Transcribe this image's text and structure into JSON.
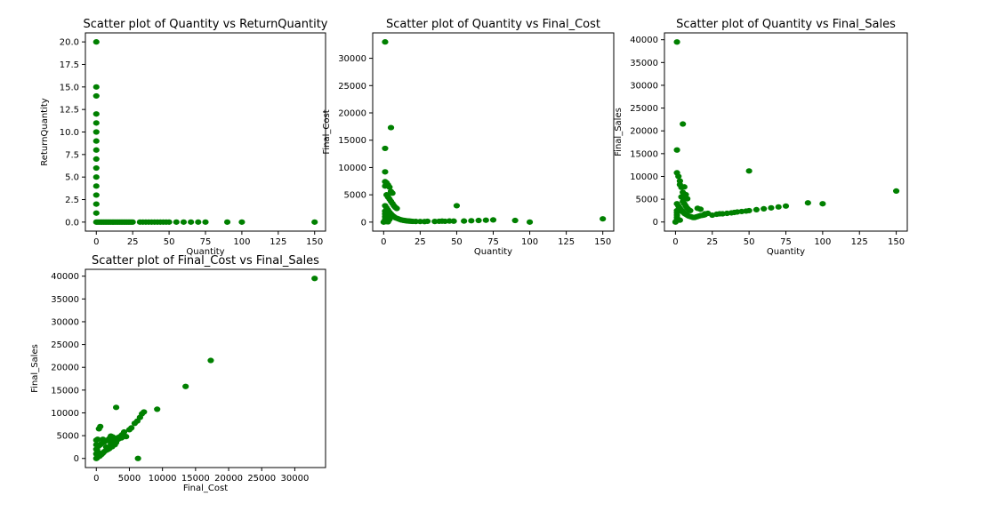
{
  "marker_color": "#008000",
  "chart_data": [
    {
      "type": "scatter",
      "title": "Scatter plot of Quantity vs ReturnQuantity",
      "xlabel": "Quantity",
      "ylabel": "ReturnQuantity",
      "xlim": [
        -7.5,
        157.5
      ],
      "ylim": [
        -1.0,
        21.0
      ],
      "xticks": [
        0,
        25,
        50,
        75,
        100,
        125,
        150
      ],
      "yticks": [
        0.0,
        2.5,
        5.0,
        7.5,
        10.0,
        12.5,
        15.0,
        17.5,
        20.0
      ],
      "ytick_labels": [
        "0.0",
        "2.5",
        "5.0",
        "7.5",
        "10.0",
        "12.5",
        "15.0",
        "17.5",
        "20.0"
      ],
      "points": [
        [
          0,
          20
        ],
        [
          0,
          15
        ],
        [
          0,
          14
        ],
        [
          0,
          12
        ],
        [
          0,
          11
        ],
        [
          0,
          10
        ],
        [
          0,
          9
        ],
        [
          0,
          8
        ],
        [
          0,
          7
        ],
        [
          0,
          6
        ],
        [
          0,
          5
        ],
        [
          0,
          4
        ],
        [
          0,
          3
        ],
        [
          0,
          2
        ],
        [
          0,
          1
        ],
        [
          0,
          0
        ],
        [
          1,
          0
        ],
        [
          2,
          0
        ],
        [
          3,
          0
        ],
        [
          4,
          0
        ],
        [
          5,
          0
        ],
        [
          6,
          0
        ],
        [
          7,
          0
        ],
        [
          8,
          0
        ],
        [
          9,
          0
        ],
        [
          10,
          0
        ],
        [
          11,
          0
        ],
        [
          12,
          0
        ],
        [
          13,
          0
        ],
        [
          14,
          0
        ],
        [
          15,
          0
        ],
        [
          16,
          0
        ],
        [
          17,
          0
        ],
        [
          18,
          0
        ],
        [
          19,
          0
        ],
        [
          20,
          0
        ],
        [
          21,
          0
        ],
        [
          22,
          0
        ],
        [
          23,
          0
        ],
        [
          24,
          0
        ],
        [
          25,
          0
        ],
        [
          30,
          0
        ],
        [
          32,
          0
        ],
        [
          34,
          0
        ],
        [
          36,
          0
        ],
        [
          38,
          0
        ],
        [
          40,
          0
        ],
        [
          42,
          0
        ],
        [
          44,
          0
        ],
        [
          46,
          0
        ],
        [
          48,
          0
        ],
        [
          50,
          0
        ],
        [
          55,
          0
        ],
        [
          60,
          0
        ],
        [
          65,
          0
        ],
        [
          70,
          0
        ],
        [
          75,
          0
        ],
        [
          90,
          0
        ],
        [
          100,
          0
        ],
        [
          150,
          0
        ]
      ]
    },
    {
      "type": "scatter",
      "title": "Scatter plot of Quantity vs Final_Cost",
      "xlabel": "Quantity",
      "ylabel": "Final_Cost",
      "xlim": [
        -7.5,
        157.5
      ],
      "ylim": [
        -1650,
        34650
      ],
      "xticks": [
        0,
        25,
        50,
        75,
        100,
        125,
        150
      ],
      "yticks": [
        0,
        5000,
        10000,
        15000,
        20000,
        25000,
        30000
      ],
      "ytick_labels": [
        "0",
        "5000",
        "10000",
        "15000",
        "20000",
        "25000",
        "30000"
      ],
      "points": [
        [
          1,
          33000
        ],
        [
          5,
          17300
        ],
        [
          1,
          13500
        ],
        [
          1,
          9200
        ],
        [
          1,
          7400
        ],
        [
          2,
          7200
        ],
        [
          1,
          6600
        ],
        [
          3,
          6800
        ],
        [
          4,
          6400
        ],
        [
          5,
          5600
        ],
        [
          6,
          5300
        ],
        [
          2,
          5000
        ],
        [
          3,
          4600
        ],
        [
          4,
          4200
        ],
        [
          5,
          3800
        ],
        [
          6,
          3400
        ],
        [
          7,
          3000
        ],
        [
          8,
          2700
        ],
        [
          9,
          2500
        ],
        [
          1,
          3000
        ],
        [
          2,
          2600
        ],
        [
          3,
          2200
        ],
        [
          4,
          1800
        ],
        [
          5,
          1500
        ],
        [
          6,
          1200
        ],
        [
          7,
          1000
        ],
        [
          8,
          800
        ],
        [
          9,
          700
        ],
        [
          10,
          600
        ],
        [
          11,
          500
        ],
        [
          12,
          400
        ],
        [
          13,
          350
        ],
        [
          14,
          300
        ],
        [
          15,
          260
        ],
        [
          16,
          220
        ],
        [
          17,
          200
        ],
        [
          18,
          180
        ],
        [
          19,
          150
        ],
        [
          20,
          130
        ],
        [
          1,
          2000
        ],
        [
          1,
          1500
        ],
        [
          1,
          1000
        ],
        [
          1,
          500
        ],
        [
          2,
          1200
        ],
        [
          2,
          800
        ],
        [
          3,
          600
        ],
        [
          4,
          500
        ],
        [
          0,
          0
        ],
        [
          1,
          100
        ],
        [
          2,
          100
        ],
        [
          3,
          50
        ],
        [
          22,
          120
        ],
        [
          25,
          110
        ],
        [
          28,
          100
        ],
        [
          30,
          150
        ],
        [
          35,
          120
        ],
        [
          38,
          150
        ],
        [
          40,
          180
        ],
        [
          42,
          150
        ],
        [
          45,
          200
        ],
        [
          48,
          180
        ],
        [
          50,
          3000
        ],
        [
          55,
          200
        ],
        [
          60,
          250
        ],
        [
          65,
          300
        ],
        [
          70,
          350
        ],
        [
          75,
          400
        ],
        [
          90,
          300
        ],
        [
          100,
          0
        ],
        [
          150,
          600
        ]
      ]
    },
    {
      "type": "scatter",
      "title": "Scatter plot of Quantity vs Final_Sales",
      "xlabel": "Quantity",
      "ylabel": "Final_Sales",
      "xlim": [
        -7.5,
        157.5
      ],
      "ylim": [
        -2000,
        41500
      ],
      "xticks": [
        0,
        25,
        50,
        75,
        100,
        125,
        150
      ],
      "yticks": [
        0,
        5000,
        10000,
        15000,
        20000,
        25000,
        30000,
        35000,
        40000
      ],
      "ytick_labels": [
        "0",
        "5000",
        "10000",
        "15000",
        "20000",
        "25000",
        "30000",
        "35000",
        "40000"
      ],
      "points": [
        [
          1,
          39500
        ],
        [
          5,
          21500
        ],
        [
          1,
          15800
        ],
        [
          1,
          10800
        ],
        [
          2,
          10000
        ],
        [
          3,
          9000
        ],
        [
          3,
          8200
        ],
        [
          4,
          7600
        ],
        [
          6,
          7700
        ],
        [
          5,
          6500
        ],
        [
          7,
          6000
        ],
        [
          4,
          5500
        ],
        [
          6,
          5200
        ],
        [
          8,
          5100
        ],
        [
          5,
          4500
        ],
        [
          6,
          4000
        ],
        [
          7,
          3500
        ],
        [
          8,
          3000
        ],
        [
          9,
          2700
        ],
        [
          10,
          2500
        ],
        [
          1,
          4000
        ],
        [
          2,
          3500
        ],
        [
          3,
          3000
        ],
        [
          4,
          2600
        ],
        [
          5,
          2200
        ],
        [
          6,
          1900
        ],
        [
          7,
          1700
        ],
        [
          8,
          1500
        ],
        [
          9,
          1300
        ],
        [
          10,
          1200
        ],
        [
          11,
          1100
        ],
        [
          12,
          1000
        ],
        [
          13,
          1000
        ],
        [
          14,
          1100
        ],
        [
          15,
          1200
        ],
        [
          16,
          1300
        ],
        [
          17,
          1400
        ],
        [
          18,
          1450
        ],
        [
          19,
          1500
        ],
        [
          20,
          1600
        ],
        [
          1,
          2500
        ],
        [
          1,
          2000
        ],
        [
          1,
          1500
        ],
        [
          1,
          1000
        ],
        [
          1,
          500
        ],
        [
          0,
          0
        ],
        [
          2,
          500
        ],
        [
          3,
          400
        ],
        [
          15,
          3000
        ],
        [
          17,
          2800
        ],
        [
          20,
          1800
        ],
        [
          22,
          1900
        ],
        [
          25,
          1500
        ],
        [
          28,
          1700
        ],
        [
          30,
          1800
        ],
        [
          32,
          1800
        ],
        [
          35,
          1900
        ],
        [
          38,
          2000
        ],
        [
          40,
          2100
        ],
        [
          42,
          2200
        ],
        [
          45,
          2300
        ],
        [
          48,
          2400
        ],
        [
          50,
          11200
        ],
        [
          50,
          2500
        ],
        [
          55,
          2700
        ],
        [
          60,
          2900
        ],
        [
          65,
          3100
        ],
        [
          70,
          3300
        ],
        [
          75,
          3500
        ],
        [
          90,
          4200
        ],
        [
          100,
          4000
        ],
        [
          150,
          6800
        ]
      ]
    },
    {
      "type": "scatter",
      "title": "Scatter plot of Final_Cost vs Final_Sales",
      "xlabel": "Final_Cost",
      "ylabel": "Final_Sales",
      "xlim": [
        -1650,
        34650
      ],
      "ylim": [
        -2000,
        41500
      ],
      "xticks": [
        0,
        5000,
        10000,
        15000,
        20000,
        25000,
        30000
      ],
      "yticks": [
        0,
        5000,
        10000,
        15000,
        20000,
        25000,
        30000,
        35000,
        40000
      ],
      "ytick_labels": [
        "0",
        "5000",
        "10000",
        "15000",
        "20000",
        "25000",
        "30000",
        "35000",
        "40000"
      ],
      "points": [
        [
          33000,
          39500
        ],
        [
          17300,
          21500
        ],
        [
          13500,
          15800
        ],
        [
          9200,
          10800
        ],
        [
          7200,
          10200
        ],
        [
          6900,
          9800
        ],
        [
          6600,
          9000
        ],
        [
          6200,
          8200
        ],
        [
          5800,
          7700
        ],
        [
          5300,
          6700
        ],
        [
          5000,
          6300
        ],
        [
          3000,
          11200
        ],
        [
          600,
          7000
        ],
        [
          400,
          6500
        ],
        [
          6300,
          0
        ],
        [
          4200,
          5800
        ],
        [
          3900,
          5200
        ],
        [
          3600,
          4800
        ],
        [
          3300,
          4600
        ],
        [
          3000,
          4300
        ],
        [
          2700,
          4000
        ],
        [
          2500,
          4700
        ],
        [
          2200,
          4900
        ],
        [
          2000,
          4400
        ],
        [
          1800,
          4100
        ],
        [
          1500,
          3900
        ],
        [
          1200,
          3600
        ],
        [
          1000,
          4200
        ],
        [
          800,
          3300
        ],
        [
          600,
          3000
        ],
        [
          400,
          2800
        ],
        [
          200,
          4200
        ],
        [
          3000,
          3500
        ],
        [
          2800,
          3000
        ],
        [
          2400,
          2600
        ],
        [
          2000,
          2200
        ],
        [
          1800,
          2000
        ],
        [
          1500,
          1800
        ],
        [
          1200,
          1500
        ],
        [
          1000,
          1200
        ],
        [
          800,
          900
        ],
        [
          600,
          700
        ],
        [
          400,
          500
        ],
        [
          200,
          300
        ],
        [
          100,
          100
        ],
        [
          0,
          0
        ],
        [
          100,
          2000
        ],
        [
          200,
          1500
        ],
        [
          300,
          1000
        ],
        [
          500,
          500
        ],
        [
          0,
          1000
        ],
        [
          0,
          2000
        ],
        [
          0,
          3000
        ],
        [
          0,
          4000
        ],
        [
          1500,
          2500
        ],
        [
          2200,
          3200
        ],
        [
          2600,
          3600
        ],
        [
          3300,
          4200
        ],
        [
          3800,
          4500
        ],
        [
          4500,
          4800
        ]
      ]
    }
  ]
}
